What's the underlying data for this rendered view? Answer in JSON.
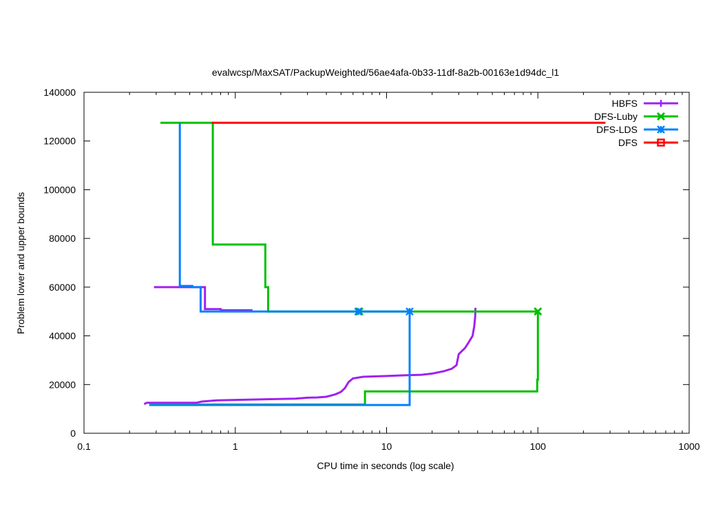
{
  "chart_data": {
    "type": "line",
    "title": "evalwcsp/MaxSAT/PackupWeighted/56ae4afa-0b33-11df-8a2b-00163e1d94dc_l1",
    "xlabel": "CPU time in seconds (log scale)",
    "ylabel": "Problem lower and upper bounds",
    "xscale": "log",
    "xlim": [
      0.1,
      1000
    ],
    "ylim": [
      0,
      140000
    ],
    "xticks": [
      0.1,
      1,
      10,
      100,
      1000
    ],
    "xtick_labels": [
      "0.1",
      "1",
      "10",
      "100",
      "1000"
    ],
    "yticks": [
      0,
      20000,
      40000,
      60000,
      80000,
      100000,
      120000,
      140000
    ],
    "ytick_labels": [
      "0",
      "20000",
      "40000",
      "60000",
      "80000",
      "100000",
      "120000",
      "140000"
    ],
    "grid": false,
    "legend_position": "top-right",
    "series": [
      {
        "name": "HBFS",
        "color": "#a020f0",
        "marker": "plus",
        "upper": [
          [
            0.29,
            60000
          ],
          [
            0.63,
            60000
          ],
          [
            0.63,
            51000
          ],
          [
            0.8,
            51000
          ],
          [
            0.8,
            50500
          ],
          [
            1.3,
            50500
          ]
        ],
        "lower": [
          [
            0.25,
            12000
          ],
          [
            0.26,
            12500
          ],
          [
            0.55,
            12500
          ],
          [
            0.6,
            13000
          ],
          [
            0.75,
            13500
          ],
          [
            1.2,
            13800
          ],
          [
            2.5,
            14200
          ],
          [
            3.0,
            14600
          ],
          [
            3.5,
            14700
          ],
          [
            4.0,
            15000
          ],
          [
            4.3,
            15500
          ],
          [
            4.6,
            16000
          ],
          [
            5.0,
            17000
          ],
          [
            5.3,
            18500
          ],
          [
            5.6,
            21000
          ],
          [
            6.0,
            22500
          ],
          [
            7.0,
            23200
          ],
          [
            10.0,
            23500
          ],
          [
            13.0,
            23800
          ],
          [
            17.0,
            24000
          ],
          [
            20.0,
            24500
          ],
          [
            24.0,
            25500
          ],
          [
            27.0,
            26500
          ],
          [
            29.0,
            28000
          ],
          [
            30.0,
            32500
          ],
          [
            33.0,
            35000
          ],
          [
            35.0,
            37500
          ],
          [
            37.0,
            40000
          ],
          [
            38.0,
            44000
          ],
          [
            38.5,
            48000
          ],
          [
            38.7,
            51500
          ]
        ],
        "markers": []
      },
      {
        "name": "DFS-Luby",
        "color": "#00c000",
        "marker": "x",
        "upper": [
          [
            0.32,
            127500
          ],
          [
            0.71,
            127500
          ],
          [
            0.71,
            77500
          ],
          [
            1.58,
            77500
          ],
          [
            1.58,
            60000
          ],
          [
            1.65,
            60000
          ],
          [
            1.65,
            50000
          ],
          [
            100,
            50000
          ]
        ],
        "lower": [
          [
            0.27,
            11800
          ],
          [
            7.2,
            11800
          ],
          [
            7.2,
            17200
          ],
          [
            99,
            17200
          ],
          [
            99,
            22000
          ],
          [
            100,
            22000
          ],
          [
            100,
            50000
          ]
        ],
        "markers": [
          [
            6.6,
            50000
          ],
          [
            100,
            50000
          ]
        ]
      },
      {
        "name": "DFS-LDS",
        "color": "#0080ff",
        "marker": "star",
        "upper": [
          [
            0.43,
            127500
          ],
          [
            0.43,
            60500
          ],
          [
            0.52,
            60500
          ],
          [
            0.52,
            60000
          ],
          [
            0.59,
            60000
          ],
          [
            0.59,
            50000
          ],
          [
            14.2,
            50000
          ]
        ],
        "lower": [
          [
            0.27,
            11600
          ],
          [
            14.2,
            11600
          ],
          [
            14.2,
            50000
          ]
        ],
        "markers": [
          [
            6.5,
            50000
          ],
          [
            14.2,
            50000
          ]
        ]
      },
      {
        "name": "DFS",
        "color": "#ff0000",
        "marker": "square",
        "upper": [
          [
            0.7,
            127500
          ],
          [
            280,
            127500
          ]
        ],
        "lower": [],
        "markers": []
      }
    ]
  }
}
